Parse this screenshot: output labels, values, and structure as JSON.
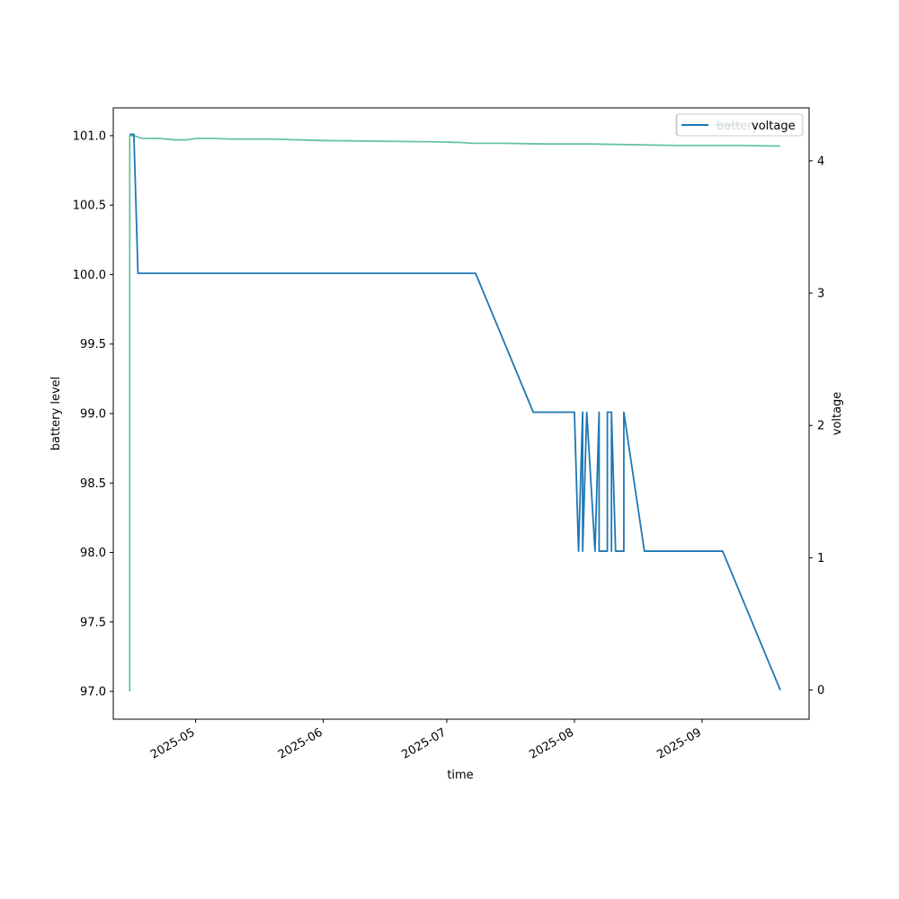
{
  "chart_data": {
    "type": "line",
    "xlabel": "time",
    "ylabel_left": "battery level",
    "ylabel_right": "voltage",
    "x_ticks": [
      "2025-05-01",
      "2025-06-01",
      "2025-07-01",
      "2025-08-01",
      "2025-09-01"
    ],
    "x_tick_labels": [
      "2025-05",
      "2025-06",
      "2025-07",
      "2025-08",
      "2025-09"
    ],
    "xlim": [
      "2025-04-11",
      "2025-09-27"
    ],
    "ylim_left": [
      96.8,
      101.2
    ],
    "yticks_left": [
      "97.0",
      "97.5",
      "98.0",
      "98.5",
      "99.0",
      "99.5",
      "100.0",
      "100.5",
      "101.0"
    ],
    "ylim_right": [
      -0.22,
      4.4
    ],
    "yticks_right": [
      "0",
      "1",
      "2",
      "3",
      "4"
    ],
    "grid": false,
    "legend_position": "top-right",
    "series": [
      {
        "name": "battery",
        "axis": "left",
        "color": "#66c2a5",
        "points": [
          [
            "2025-04-15",
            97.0
          ],
          [
            "2025-04-15",
            101.0
          ],
          [
            "2025-04-16",
            101.0
          ],
          [
            "2025-04-17",
            100.99
          ],
          [
            "2025-04-18",
            100.98
          ],
          [
            "2025-04-20",
            100.98
          ],
          [
            "2025-04-22",
            100.98
          ],
          [
            "2025-04-24",
            100.975
          ],
          [
            "2025-04-26",
            100.97
          ],
          [
            "2025-04-29",
            100.97
          ],
          [
            "2025-05-01",
            100.98
          ],
          [
            "2025-05-05",
            100.98
          ],
          [
            "2025-05-10",
            100.975
          ],
          [
            "2025-05-20",
            100.975
          ],
          [
            "2025-06-01",
            100.965
          ],
          [
            "2025-06-15",
            100.96
          ],
          [
            "2025-06-30",
            100.955
          ],
          [
            "2025-07-05",
            100.95
          ],
          [
            "2025-07-07",
            100.945
          ],
          [
            "2025-07-15",
            100.945
          ],
          [
            "2025-07-25",
            100.94
          ],
          [
            "2025-08-05",
            100.94
          ],
          [
            "2025-08-15",
            100.935
          ],
          [
            "2025-08-25",
            100.93
          ],
          [
            "2025-09-10",
            100.93
          ],
          [
            "2025-09-20",
            100.925
          ]
        ]
      },
      {
        "name": "voltage",
        "axis": "right",
        "color": "#1f77b4",
        "points": [
          [
            "2025-04-15",
            4.2
          ],
          [
            "2025-04-16",
            4.2
          ],
          [
            "2025-04-17",
            3.15
          ],
          [
            "2025-07-08",
            3.15
          ],
          [
            "2025-07-22",
            2.1
          ],
          [
            "2025-08-01",
            2.1
          ],
          [
            "2025-08-02",
            1.05
          ],
          [
            "2025-08-03",
            2.1
          ],
          [
            "2025-08-03",
            1.05
          ],
          [
            "2025-08-04",
            2.1
          ],
          [
            "2025-08-06",
            1.05
          ],
          [
            "2025-08-07",
            2.1
          ],
          [
            "2025-08-07",
            1.05
          ],
          [
            "2025-08-09",
            1.05
          ],
          [
            "2025-08-09",
            2.1
          ],
          [
            "2025-08-10",
            2.1
          ],
          [
            "2025-08-10",
            1.05
          ],
          [
            "2025-08-10",
            2.1
          ],
          [
            "2025-08-11",
            1.05
          ],
          [
            "2025-08-13",
            1.05
          ],
          [
            "2025-08-13",
            2.1
          ],
          [
            "2025-08-18",
            1.05
          ],
          [
            "2025-09-06",
            1.05
          ],
          [
            "2025-09-20",
            0.0
          ]
        ]
      }
    ],
    "legend_entries": [
      "battery",
      "voltage"
    ]
  }
}
